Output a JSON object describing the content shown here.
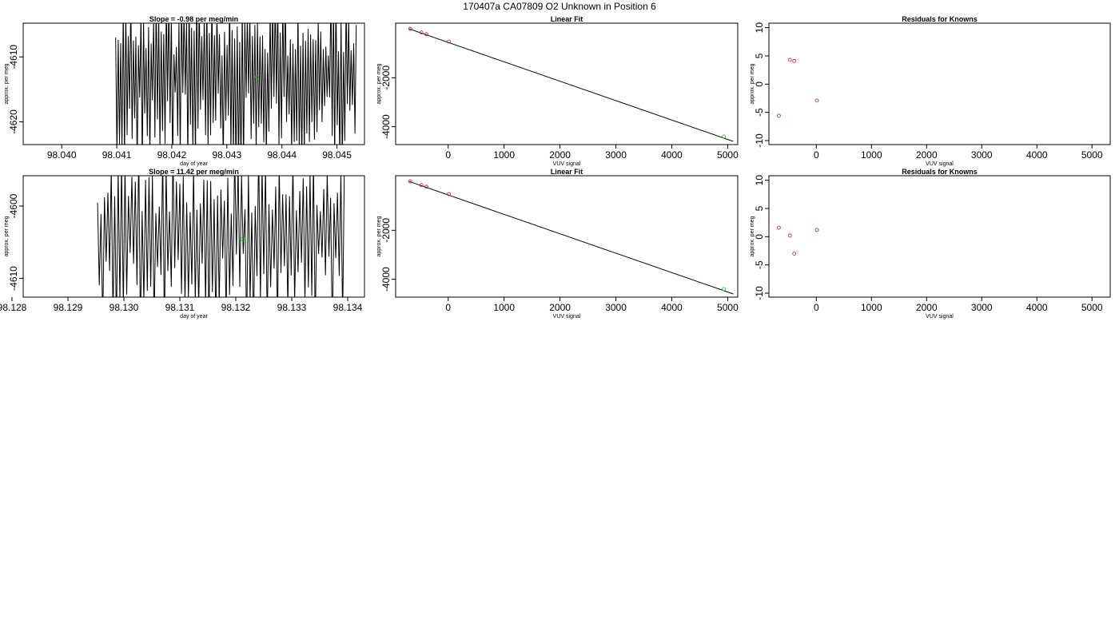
{
  "page": {
    "title": "170407a     CA07809   O2 Unknown in Position  6"
  },
  "colors": {
    "line": "#000000",
    "known_point": "#b22222",
    "unknown_point": "#00cc00"
  },
  "chart_data": [
    {
      "type": "line",
      "title": "Slope =  -0.98  per meg/min",
      "xlabel": "day of year",
      "ylabel": "approx. per meg",
      "xlim": [
        98.0393,
        98.0455
      ],
      "ylim": [
        -4623.5,
        -4604.8
      ],
      "xticks": [
        "98.040",
        "98.041",
        "98.042",
        "98.043",
        "98.044",
        "98.045"
      ],
      "xtick_values": [
        98.04,
        98.041,
        98.042,
        98.043,
        98.044,
        98.045
      ],
      "yticks": [
        "-4620",
        "-4610"
      ],
      "ytick_values": [
        -4620,
        -4610
      ],
      "signal": {
        "x_start": 98.04098,
        "x_end": 98.04535,
        "y_min": -4628,
        "y_max": -4600,
        "oscillations": 95
      },
      "points": [
        {
          "x": 98.04355,
          "y": -4613.1,
          "kind": "unknown"
        }
      ],
      "grid": false
    },
    {
      "type": "scatter",
      "title": "Linear Fit",
      "xlabel": "VUV signal",
      "ylabel": "approx. per meg",
      "xlim": [
        -940,
        5180
      ],
      "ylim": [
        -4730,
        230
      ],
      "xticks": [
        "0",
        "1000",
        "2000",
        "3000",
        "4000",
        "5000"
      ],
      "xtick_values": [
        0,
        1000,
        2000,
        3000,
        4000,
        5000
      ],
      "yticks": [
        "-4000",
        "-2000"
      ],
      "ytick_values": [
        -4000,
        -2000
      ],
      "fit_line": {
        "x": [
          -700,
          5100
        ],
        "y": [
          0,
          -4600
        ]
      },
      "points": [
        {
          "x": -680,
          "y": 0,
          "kind": "known"
        },
        {
          "x": -480,
          "y": -150,
          "kind": "known"
        },
        {
          "x": -390,
          "y": -220,
          "kind": "known"
        },
        {
          "x": 10,
          "y": -520,
          "kind": "known"
        },
        {
          "x": 4930,
          "y": -4400,
          "kind": "unknown"
        }
      ],
      "grid": false
    },
    {
      "type": "scatter",
      "title": "Residuals for Knowns",
      "xlabel": "VUV signal",
      "ylabel": "approx. per meg",
      "xlim": [
        -860,
        5330
      ],
      "ylim": [
        -10.7,
        10.8
      ],
      "xticks": [
        "0",
        "1000",
        "2000",
        "3000",
        "4000",
        "5000"
      ],
      "xtick_values": [
        0,
        1000,
        2000,
        3000,
        4000,
        5000
      ],
      "yticks": [
        "-10",
        "-5",
        "0",
        "5",
        "10"
      ],
      "ytick_values": [
        -10,
        -5,
        0,
        5,
        10
      ],
      "points": [
        {
          "x": -680,
          "y": -5.6,
          "kind": "known"
        },
        {
          "x": -480,
          "y": 4.3,
          "kind": "known"
        },
        {
          "x": -400,
          "y": 4.1,
          "kind": "known"
        },
        {
          "x": 10,
          "y": -2.9,
          "kind": "known"
        }
      ],
      "grid": false
    },
    {
      "type": "line",
      "title": "Slope =  11.42  per meg/min",
      "xlabel": "day of year",
      "ylabel": "approx. per meg",
      "xlim": [
        98.1282,
        98.1343
      ],
      "ylim": [
        -4612.6,
        -4595.8
      ],
      "xticks": [
        "98.128",
        "98.129",
        "98.130",
        "98.131",
        "98.132",
        "98.133",
        "98.134"
      ],
      "xtick_values": [
        98.128,
        98.129,
        98.13,
        98.131,
        98.132,
        98.133,
        98.134
      ],
      "yticks": [
        "-4610",
        "-4600"
      ],
      "ytick_values": [
        -4610,
        -4600
      ],
      "signal": {
        "x_start": 98.12953,
        "x_end": 98.13394,
        "y_min": -4618,
        "y_max": -4592,
        "oscillations": 72
      },
      "points": [
        {
          "x": 98.13212,
          "y": -4604.6,
          "kind": "unknown"
        }
      ],
      "grid": false
    },
    {
      "type": "scatter",
      "title": "Linear Fit",
      "xlabel": "VUV signal",
      "ylabel": "approx. per meg",
      "xlim": [
        -940,
        5180
      ],
      "ylim": [
        -4730,
        230
      ],
      "xticks": [
        "0",
        "1000",
        "2000",
        "3000",
        "4000",
        "5000"
      ],
      "xtick_values": [
        0,
        1000,
        2000,
        3000,
        4000,
        5000
      ],
      "yticks": [
        "-4000",
        "-2000"
      ],
      "ytick_values": [
        -4000,
        -2000
      ],
      "fit_line": {
        "x": [
          -700,
          5100
        ],
        "y": [
          0,
          -4600
        ]
      },
      "points": [
        {
          "x": -680,
          "y": 0,
          "kind": "known"
        },
        {
          "x": -480,
          "y": -150,
          "kind": "known"
        },
        {
          "x": -390,
          "y": -220,
          "kind": "known"
        },
        {
          "x": 10,
          "y": -520,
          "kind": "known"
        },
        {
          "x": 4930,
          "y": -4400,
          "kind": "unknown"
        }
      ],
      "grid": false
    },
    {
      "type": "scatter",
      "title": "Residuals for Knowns",
      "xlabel": "VUV signal",
      "ylabel": "approx. per meg",
      "xlim": [
        -860,
        5330
      ],
      "ylim": [
        -10.7,
        10.8
      ],
      "xticks": [
        "0",
        "1000",
        "2000",
        "3000",
        "4000",
        "5000"
      ],
      "xtick_values": [
        0,
        1000,
        2000,
        3000,
        4000,
        5000
      ],
      "yticks": [
        "-10",
        "-5",
        "0",
        "5",
        "10"
      ],
      "ytick_values": [
        -10,
        -5,
        0,
        5,
        10
      ],
      "points": [
        {
          "x": -680,
          "y": 1.6,
          "kind": "known"
        },
        {
          "x": -480,
          "y": 0.2,
          "kind": "known"
        },
        {
          "x": -400,
          "y": -3.0,
          "kind": "known"
        },
        {
          "x": 10,
          "y": 1.2,
          "kind": "known"
        }
      ],
      "grid": false
    }
  ]
}
